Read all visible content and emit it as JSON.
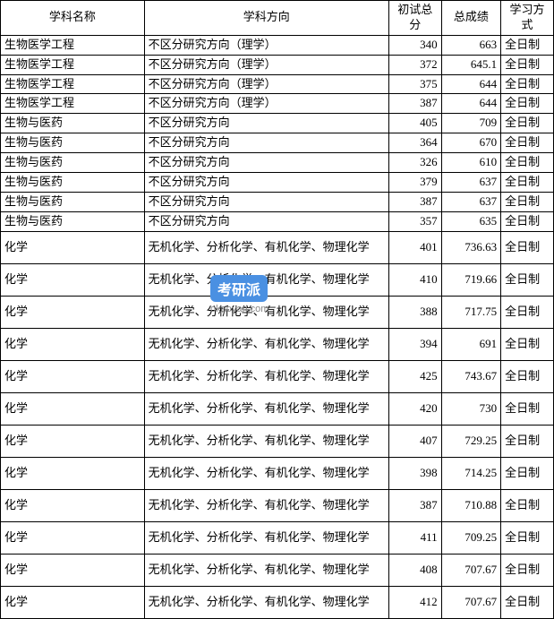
{
  "table": {
    "columns": [
      "学科名称",
      "学科方向",
      "初试总分",
      "总成绩",
      "学习方式"
    ],
    "rows": [
      {
        "subject": "生物医学工程",
        "direction": "不区分研究方向（理学）",
        "score1": "340",
        "score2": "663",
        "mode": "全日制",
        "tall": false
      },
      {
        "subject": "生物医学工程",
        "direction": "不区分研究方向（理学）",
        "score1": "372",
        "score2": "645.1",
        "mode": "全日制",
        "tall": false
      },
      {
        "subject": "生物医学工程",
        "direction": "不区分研究方向（理学）",
        "score1": "375",
        "score2": "644",
        "mode": "全日制",
        "tall": false
      },
      {
        "subject": "生物医学工程",
        "direction": "不区分研究方向（理学）",
        "score1": "387",
        "score2": "644",
        "mode": "全日制",
        "tall": false
      },
      {
        "subject": "生物与医药",
        "direction": "不区分研究方向",
        "score1": "405",
        "score2": "709",
        "mode": "全日制",
        "tall": false
      },
      {
        "subject": "生物与医药",
        "direction": "不区分研究方向",
        "score1": "364",
        "score2": "670",
        "mode": "全日制",
        "tall": false
      },
      {
        "subject": "生物与医药",
        "direction": "不区分研究方向",
        "score1": "326",
        "score2": "610",
        "mode": "全日制",
        "tall": false
      },
      {
        "subject": "生物与医药",
        "direction": "不区分研究方向",
        "score1": "379",
        "score2": "637",
        "mode": "全日制",
        "tall": false
      },
      {
        "subject": "生物与医药",
        "direction": "不区分研究方向",
        "score1": "387",
        "score2": "637",
        "mode": "全日制",
        "tall": false
      },
      {
        "subject": "生物与医药",
        "direction": "不区分研究方向",
        "score1": "357",
        "score2": "635",
        "mode": "全日制",
        "tall": false
      },
      {
        "subject": "化学",
        "direction": "无机化学、分析化学、有机化学、物理化学",
        "score1": "401",
        "score2": "736.63",
        "mode": "全日制",
        "tall": true
      },
      {
        "subject": "化学",
        "direction": "无机化学、分析化学、有机化学、物理化学",
        "score1": "410",
        "score2": "719.66",
        "mode": "全日制",
        "tall": true
      },
      {
        "subject": "化学",
        "direction": "无机化学、分析化学、有机化学、物理化学",
        "score1": "388",
        "score2": "717.75",
        "mode": "全日制",
        "tall": true
      },
      {
        "subject": "化学",
        "direction": "无机化学、分析化学、有机化学、物理化学",
        "score1": "394",
        "score2": "691",
        "mode": "全日制",
        "tall": true
      },
      {
        "subject": "化学",
        "direction": "无机化学、分析化学、有机化学、物理化学",
        "score1": "425",
        "score2": "743.67",
        "mode": "全日制",
        "tall": true
      },
      {
        "subject": "化学",
        "direction": "无机化学、分析化学、有机化学、物理化学",
        "score1": "420",
        "score2": "730",
        "mode": "全日制",
        "tall": true
      },
      {
        "subject": "化学",
        "direction": "无机化学、分析化学、有机化学、物理化学",
        "score1": "407",
        "score2": "729.25",
        "mode": "全日制",
        "tall": true
      },
      {
        "subject": "化学",
        "direction": "无机化学、分析化学、有机化学、物理化学",
        "score1": "398",
        "score2": "714.25",
        "mode": "全日制",
        "tall": true
      },
      {
        "subject": "化学",
        "direction": "无机化学、分析化学、有机化学、物理化学",
        "score1": "387",
        "score2": "710.88",
        "mode": "全日制",
        "tall": true
      },
      {
        "subject": "化学",
        "direction": "无机化学、分析化学、有机化学、物理化学",
        "score1": "411",
        "score2": "709.25",
        "mode": "全日制",
        "tall": true
      },
      {
        "subject": "化学",
        "direction": "无机化学、分析化学、有机化学、物理化学",
        "score1": "408",
        "score2": "707.67",
        "mode": "全日制",
        "tall": true
      },
      {
        "subject": "化学",
        "direction": "无机化学、分析化学、有机化学、物理化学",
        "score1": "412",
        "score2": "707.67",
        "mode": "全日制",
        "tall": true
      }
    ]
  },
  "watermark": {
    "logo_text": "考研派",
    "url": "okaoyan.com"
  }
}
